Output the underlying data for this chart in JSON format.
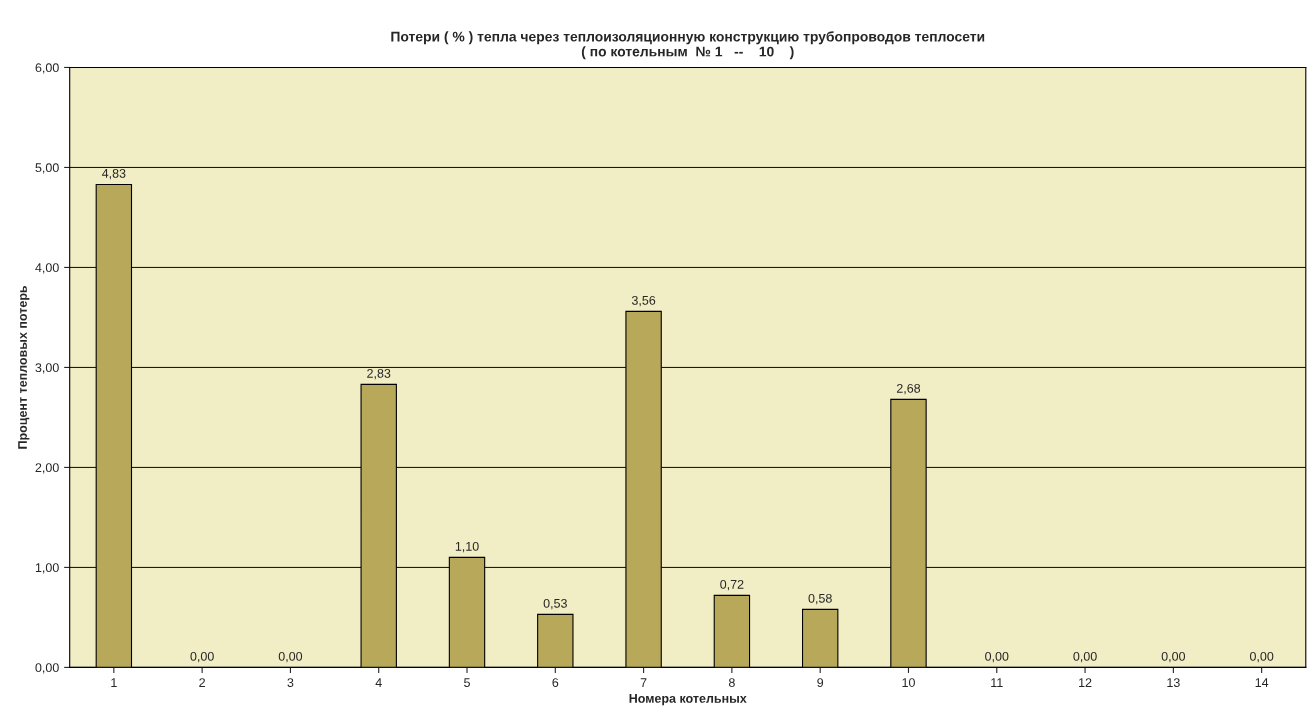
{
  "chart_data": {
    "type": "bar",
    "title": "Потери ( % ) тепла через теплоизоляционную конструкцию трубопроводов теплосети\n( по котельным  № 1   --    10    )",
    "xlabel": "Номера котельных",
    "ylabel": "Процент тепловых потерь",
    "categories": [
      "1",
      "2",
      "3",
      "4",
      "5",
      "6",
      "7",
      "8",
      "9",
      "10",
      "11",
      "12",
      "13",
      "14"
    ],
    "values": [
      4.83,
      0,
      0,
      2.83,
      1.1,
      0.53,
      3.56,
      0.72,
      0.58,
      2.68,
      0,
      0,
      0,
      0
    ],
    "value_labels": [
      "4,83",
      "0,00",
      "0,00",
      "2,83",
      "1,10",
      "0,53",
      "3,56",
      "0,72",
      "0,58",
      "2,68",
      "0,00",
      "0,00",
      "0,00",
      "0,00"
    ],
    "color": "#b8a85a",
    "ylim": [
      0,
      6
    ],
    "yticks": [
      {
        "value": 0,
        "label": "0,00"
      },
      {
        "value": 1,
        "label": "1,00"
      },
      {
        "value": 2,
        "label": "2,00"
      },
      {
        "value": 3,
        "label": "3,00"
      },
      {
        "value": 4,
        "label": "4,00"
      },
      {
        "value": 5,
        "label": "5,00"
      },
      {
        "value": 6,
        "label": "6,00"
      }
    ],
    "grid": "y"
  }
}
